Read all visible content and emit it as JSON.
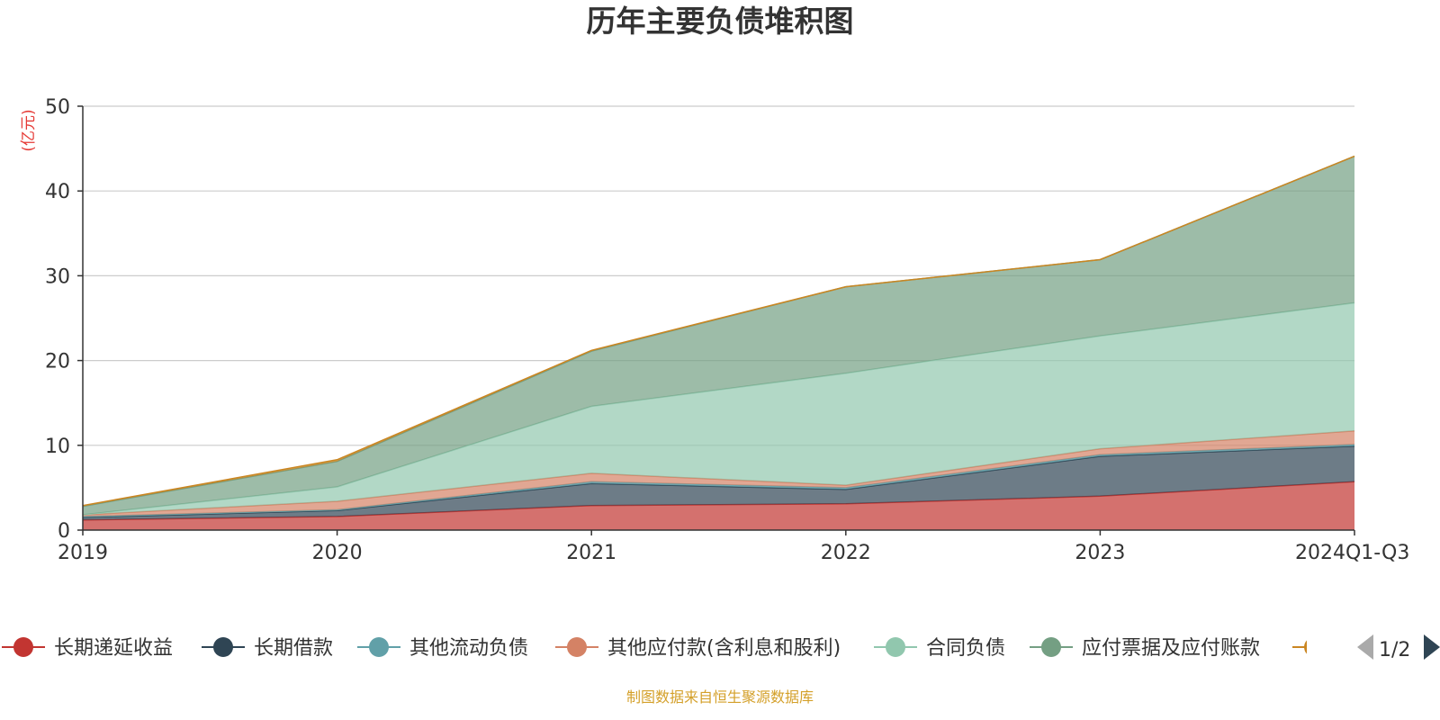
{
  "chart_data": {
    "type": "area",
    "stacked": true,
    "title": "历年主要负债堆积图",
    "ylabel": "(亿元)",
    "xlabel": "",
    "categories": [
      "2019",
      "2020",
      "2021",
      "2022",
      "2023",
      "2024Q1-Q3"
    ],
    "ylim": [
      0,
      50
    ],
    "yticks": [
      0,
      10,
      20,
      30,
      40,
      50
    ],
    "grid": true,
    "legend_position": "bottom",
    "series": [
      {
        "name": "长期递延收益",
        "color": "#c23531",
        "values": [
          1.2,
          1.6,
          2.9,
          3.1,
          4.0,
          5.7
        ]
      },
      {
        "name": "长期借款",
        "color": "#2f4554",
        "values": [
          0.3,
          0.7,
          2.6,
          1.7,
          4.7,
          4.2
        ]
      },
      {
        "name": "其他流动负债",
        "color": "#61a0a8",
        "values": [
          0.1,
          0.1,
          0.2,
          0.2,
          0.2,
          0.2
        ]
      },
      {
        "name": "其他应付款(含利息和股利)",
        "color": "#d48265",
        "values": [
          0.2,
          1.0,
          1.0,
          0.3,
          0.7,
          1.6
        ]
      },
      {
        "name": "合同负债",
        "color": "#91c7ae",
        "values": [
          0.0,
          1.7,
          7.9,
          13.2,
          13.3,
          15.1
        ]
      },
      {
        "name": "应付票据及应付账款",
        "color": "#749f83",
        "values": [
          1.0,
          3.0,
          6.5,
          10.2,
          9.0,
          17.3
        ]
      },
      {
        "name": "",
        "color": "#ca8622",
        "values": [
          0.1,
          0.2,
          0.1,
          0.0,
          0.0,
          0.0
        ]
      }
    ]
  },
  "legend": {
    "page": "1/2",
    "items": [
      {
        "label": "长期递延收益",
        "color": "#c23531"
      },
      {
        "label": "长期借款",
        "color": "#2f4554"
      },
      {
        "label": "其他流动负债",
        "color": "#61a0a8"
      },
      {
        "label": "其他应付款(含利息和股利)",
        "color": "#d48265"
      },
      {
        "label": "合同负债",
        "color": "#91c7ae"
      },
      {
        "label": "应付票据及应付账款",
        "color": "#749f83"
      },
      {
        "label": "",
        "color": "#ca8622"
      }
    ]
  },
  "source": "制图数据来自恒生聚源数据库"
}
